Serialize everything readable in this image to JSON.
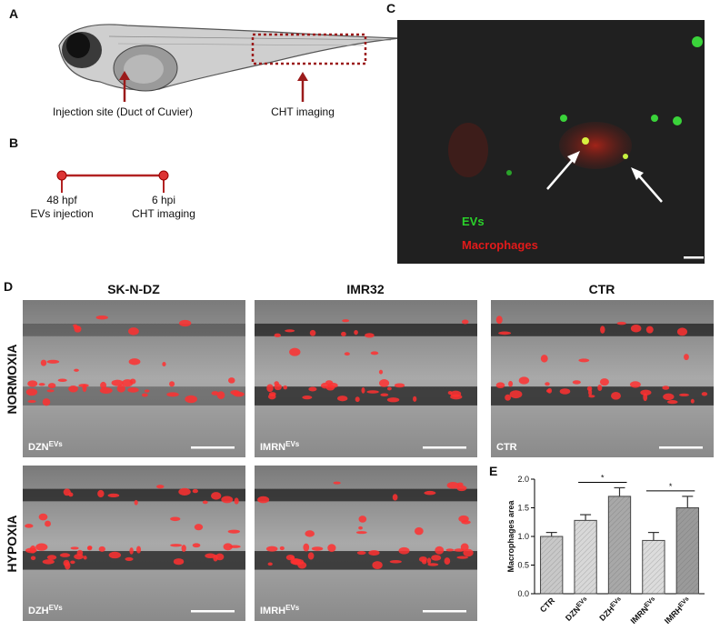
{
  "panel_a": {
    "label": "A",
    "injection_label": "Injection site (Duct of Cuvier)",
    "imaging_label": "CHT imaging"
  },
  "panel_b": {
    "label": "B",
    "events": [
      {
        "time": "48 hpf",
        "event": "EVs injection"
      },
      {
        "time": "6 hpi",
        "event": "CHT imaging"
      }
    ]
  },
  "panel_c": {
    "label": "C",
    "legend": [
      "EVs",
      "Macrophages"
    ]
  },
  "panel_d": {
    "label": "D",
    "columns": [
      "SK-N-DZ",
      "IMR32",
      "CTR"
    ],
    "rows": [
      "NORMOXIA",
      "HYPOXIA"
    ],
    "images": [
      [
        {
          "name": "DZN",
          "sup": "EVs"
        },
        {
          "name": "IMRN",
          "sup": "EVs"
        },
        {
          "name": "CTR"
        }
      ],
      [
        {
          "name": "DZH",
          "sup": "EVs"
        },
        {
          "name": "IMRH",
          "sup": "EVs"
        }
      ]
    ]
  },
  "chart_data": {
    "type": "bar",
    "panel_label": "E",
    "ylabel": "Macrophages area",
    "categories": [
      "CTR",
      "DZN",
      "DZH",
      "IMRN",
      "IMRH"
    ],
    "category_superscripts": [
      null,
      "EVs",
      "EVs",
      "EVs",
      "EVs"
    ],
    "values": [
      1.0,
      1.28,
      1.7,
      0.93,
      1.5
    ],
    "errors": [
      0.07,
      0.1,
      0.15,
      0.14,
      0.2
    ],
    "colors": [
      "#c8c8c8",
      "#d8d8d8",
      "#a8a8a8",
      "#dcdcdc",
      "#9a9a9a"
    ],
    "ylim": [
      0,
      2.0
    ],
    "yticks": [
      {
        "value": 0,
        "label": "0.0"
      },
      {
        "value": 0.5,
        "label": "0.5"
      },
      {
        "value": 1.0,
        "label": "1.0"
      },
      {
        "value": 1.5,
        "label": "1.5"
      },
      {
        "value": 2.0,
        "label": "2.0"
      }
    ],
    "significance": [
      {
        "categories": [
          "DZN",
          "DZH"
        ],
        "label": "*"
      },
      {
        "categories": [
          "IMRN",
          "IMRH"
        ],
        "label": "*"
      }
    ]
  }
}
